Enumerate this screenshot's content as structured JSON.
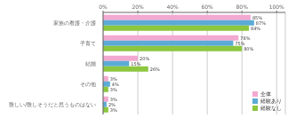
{
  "chart_data": {
    "type": "bar",
    "orientation": "horizontal",
    "categories": [
      "家族の看護・介護",
      "子育て",
      "結婚",
      "その他",
      "難しい/難しそうだと思うものはない"
    ],
    "series": [
      {
        "name": "全体",
        "color": "#f2a8d0",
        "values": [
          85,
          78,
          20,
          3,
          3
        ],
        "value_labels": [
          "85%",
          "78%",
          "20%",
          "3%",
          "3%"
        ]
      },
      {
        "name": "経験あり",
        "color": "#5babd6",
        "values": [
          87,
          75,
          15,
          4,
          2
        ],
        "value_labels": [
          "87%",
          "75%",
          "15%",
          "4%",
          "2%"
        ]
      },
      {
        "name": "経験なし",
        "color": "#8dc63f",
        "values": [
          84,
          80,
          26,
          3,
          3
        ],
        "value_labels": [
          "84%",
          "80%",
          "26%",
          "3%",
          "3%"
        ]
      }
    ],
    "xlim": [
      0,
      105
    ],
    "xticks": [
      {
        "value": 0,
        "label": "0%"
      },
      {
        "value": 20,
        "label": "20%"
      },
      {
        "value": 40,
        "label": "40%"
      },
      {
        "value": 60,
        "label": "60%"
      },
      {
        "value": 80,
        "label": "80%"
      },
      {
        "value": 100,
        "label": "100%"
      }
    ],
    "grid": true,
    "legend": "lower right",
    "data_labels": true
  }
}
